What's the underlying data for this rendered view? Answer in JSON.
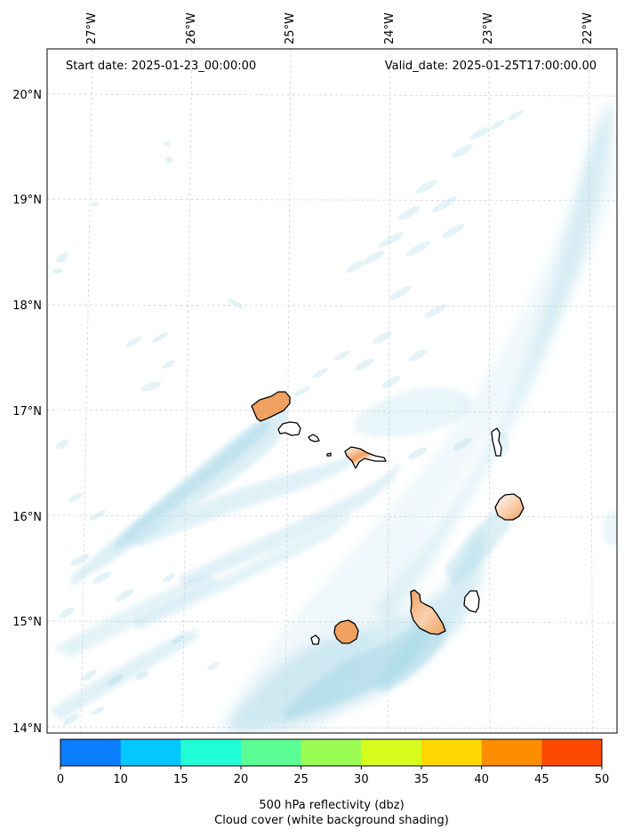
{
  "header": {
    "start_date": "Start date: 2025-01-23_00:00:00",
    "valid_date": "Valid_date: 2025-01-25T17:00:00.00"
  },
  "axes": {
    "longitude_labels": [
      "27°W",
      "26°W",
      "25°W",
      "24°W",
      "23°W",
      "22°W"
    ],
    "latitude_labels": [
      "20°N",
      "19°N",
      "18°N",
      "17°N",
      "16°N",
      "15°N",
      "14°N"
    ]
  },
  "colorbar": {
    "ticks": [
      "0",
      "10",
      "15",
      "20",
      "25",
      "30",
      "35",
      "40",
      "45",
      "50"
    ],
    "colors": [
      "#0a7efc",
      "#02c8fd",
      "#20fcd6",
      "#5bfd95",
      "#9bfd54",
      "#d6fd1c",
      "#fed800",
      "#fe8e00",
      "#fe4a00"
    ],
    "label_line1": "500 hPa reflectivity (dbz)",
    "label_line2": "Cloud cover (white background shading)"
  },
  "map": {
    "colors": {
      "cloud": "#a8d8e8",
      "island_fill": "#f0a060",
      "coast": "#000000",
      "grid": "#cccccc"
    }
  }
}
